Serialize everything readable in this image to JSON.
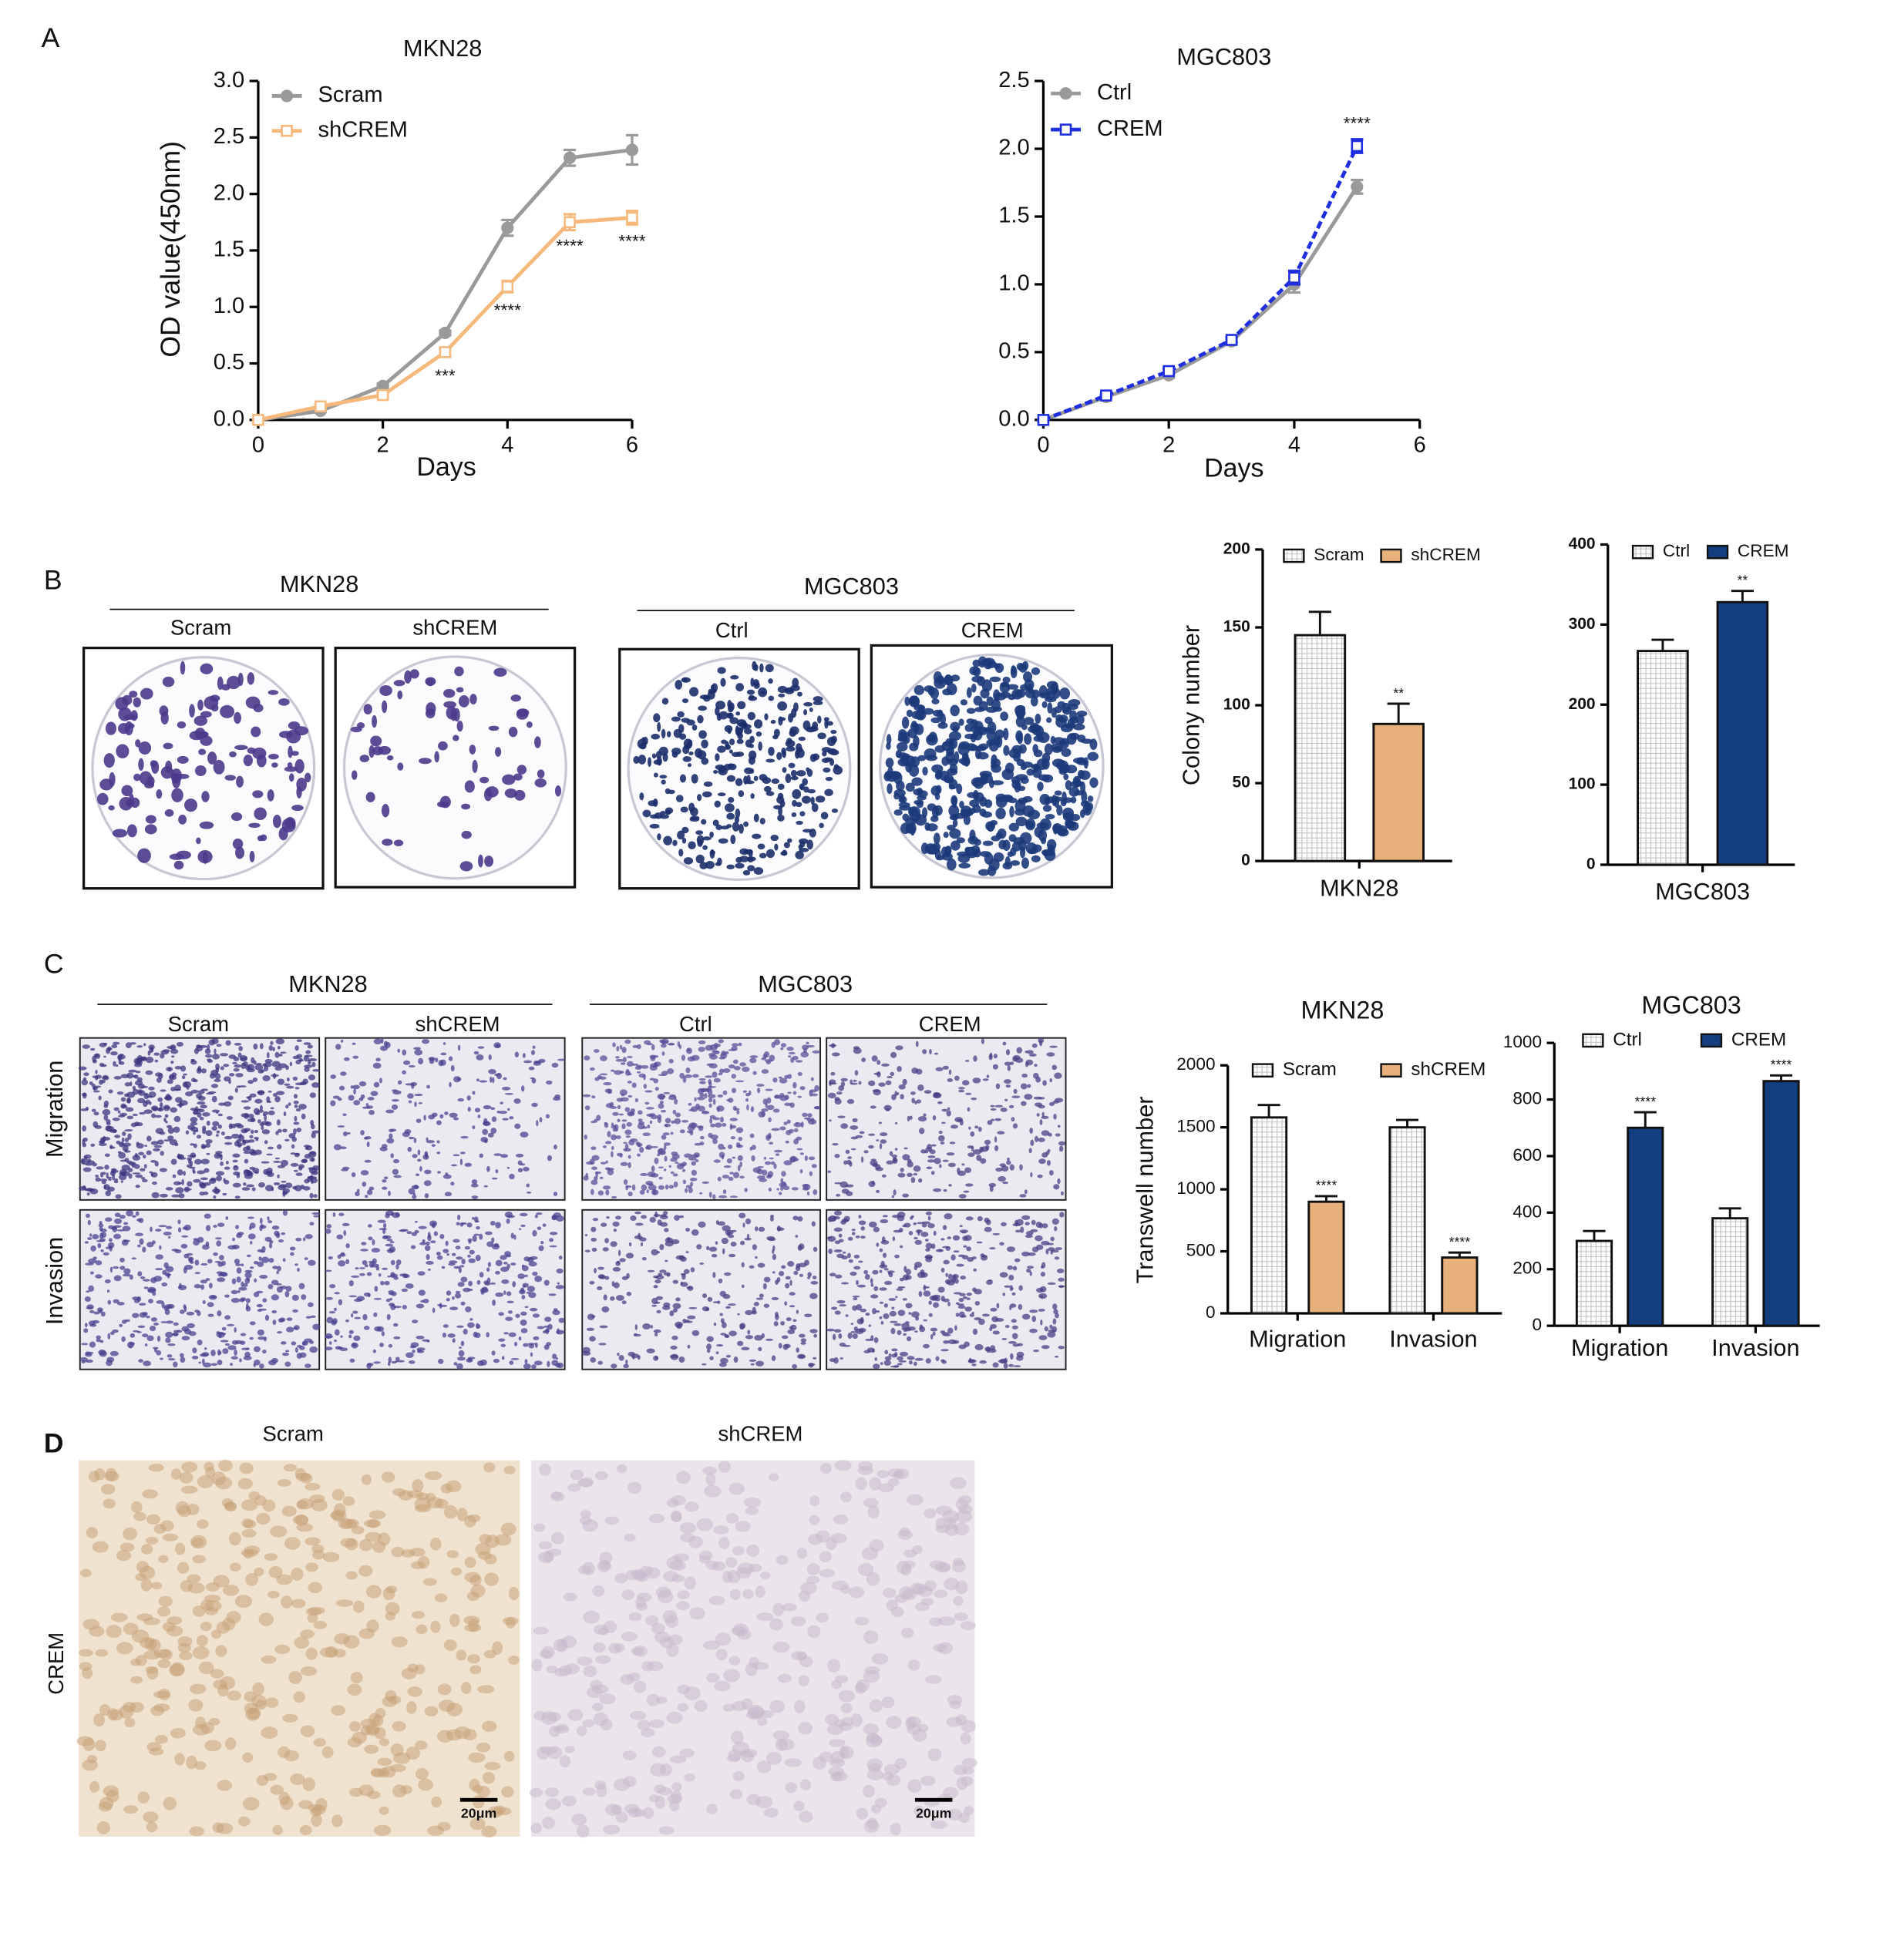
{
  "figure": {
    "panel_labels": [
      "A",
      "B",
      "C",
      "D"
    ]
  },
  "images": {
    "colony": {
      "groups": [
        {
          "title": "MKN28",
          "labels": [
            "Scram",
            "shCREM"
          ]
        },
        {
          "title": "MGC803",
          "labels": [
            "Ctrl",
            "CREM"
          ]
        }
      ]
    },
    "transwell": {
      "groups": [
        {
          "title": "MKN28",
          "labels": [
            "Scram",
            "shCREM"
          ]
        },
        {
          "title": "MGC803",
          "labels": [
            "Ctrl",
            "CREM"
          ]
        }
      ],
      "rows": [
        "Migration",
        "Invasion"
      ]
    },
    "ihc": {
      "labels": [
        "Scram",
        "shCREM"
      ],
      "row_label": "CREM",
      "scale_bar": "20μm"
    }
  },
  "chart_data": [
    {
      "type": "line",
      "title": "MKN28",
      "x_label": "Days",
      "y_label": "OD value(450nm)",
      "x": [
        0,
        1,
        2,
        3,
        4,
        5,
        6
      ],
      "xlim": [
        0,
        6
      ],
      "xticks": [
        0,
        2,
        4,
        6
      ],
      "ylim": [
        0,
        3
      ],
      "yticks": [
        {
          "value": 0,
          "label": "0.0"
        },
        0.5,
        {
          "value": 1,
          "label": "1.0"
        },
        1.5,
        {
          "value": 2,
          "label": "2.0"
        },
        2.5,
        {
          "value": 3,
          "label": "3.0"
        }
      ],
      "series": [
        {
          "name": "Scram",
          "color": "#9a9a9a",
          "marker": "circle",
          "values": [
            0,
            0.08,
            0.3,
            0.77,
            1.7,
            2.32,
            2.39
          ],
          "errors": [
            0,
            0.01,
            0.02,
            0.02,
            0.07,
            0.07,
            0.13
          ]
        },
        {
          "name": "shCREM",
          "color": "#f6b97c",
          "marker": "square",
          "values": [
            0,
            0.12,
            0.22,
            0.6,
            1.18,
            1.75,
            1.79
          ],
          "errors": [
            0,
            0.02,
            0.02,
            0.04,
            0.05,
            0.07,
            0.06
          ]
        }
      ],
      "annotations": [
        "***",
        "****",
        "****",
        "****"
      ]
    },
    {
      "type": "line",
      "title": "MGC803",
      "x_label": "Days",
      "x": [
        0,
        1,
        2,
        3,
        4,
        5
      ],
      "xlim": [
        0,
        6
      ],
      "xticks": [
        0,
        2,
        4,
        6
      ],
      "ylim": [
        0,
        2.5
      ],
      "yticks": [
        {
          "value": 0,
          "label": "0.0"
        },
        0.5,
        {
          "value": 1,
          "label": "1.0"
        },
        1.5,
        {
          "value": 2,
          "label": "2.0"
        },
        2.5
      ],
      "series": [
        {
          "name": "Ctrl",
          "color": "#9a9a9a",
          "marker": "circle",
          "values": [
            0,
            0.17,
            0.33,
            0.58,
            1.0,
            1.72
          ],
          "errors": [
            0,
            0.01,
            0.02,
            0.02,
            0.06,
            0.05
          ]
        },
        {
          "name": "CREM",
          "color": "#1f2fe0",
          "marker": "square",
          "dash": true,
          "values": [
            0,
            0.18,
            0.36,
            0.59,
            1.05,
            2.02
          ],
          "errors": [
            0,
            0.01,
            0.02,
            0.02,
            0.05,
            0.05
          ]
        }
      ],
      "annotations": [
        "****"
      ]
    },
    {
      "type": "bar",
      "y_label": "Colony number",
      "categories": [
        "MKN28"
      ],
      "ylim": [
        0,
        200
      ],
      "yticks": [
        0,
        50,
        100,
        150,
        200
      ],
      "series": [
        {
          "name": "Scram",
          "color": "#ffffff",
          "pattern": "grid",
          "values": [
            145
          ],
          "errors": [
            15
          ]
        },
        {
          "name": "shCREM",
          "color": "#e8b07a",
          "values": [
            88
          ],
          "errors": [
            13
          ]
        }
      ],
      "annotations": [
        "**"
      ]
    },
    {
      "type": "bar",
      "categories": [
        "MGC803"
      ],
      "ylim": [
        0,
        400
      ],
      "yticks": [
        0,
        100,
        200,
        300,
        400
      ],
      "series": [
        {
          "name": "Ctrl",
          "color": "#ffffff",
          "pattern": "grid",
          "values": [
            267
          ],
          "errors": [
            14
          ]
        },
        {
          "name": "CREM",
          "color": "#133f80",
          "values": [
            328
          ],
          "errors": [
            14
          ]
        }
      ],
      "annotations": [
        "**"
      ]
    },
    {
      "type": "bar",
      "title": "MKN28",
      "y_label": "Transwell number",
      "categories": [
        "Migration",
        "Invasion"
      ],
      "ylim": [
        0,
        2000
      ],
      "yticks": [
        0,
        500,
        1000,
        1500,
        2000
      ],
      "series": [
        {
          "name": "Scram",
          "color": "#ffffff",
          "pattern": "grid",
          "values": [
            1580,
            1500
          ],
          "errors": [
            100,
            60
          ]
        },
        {
          "name": "shCREM",
          "color": "#e8b07a",
          "values": [
            900,
            450
          ],
          "errors": [
            45,
            40
          ]
        }
      ],
      "annotations": [
        "****",
        "****"
      ]
    },
    {
      "type": "bar",
      "title": "MGC803",
      "categories": [
        "Migration",
        "Invasion"
      ],
      "ylim": [
        0,
        1000
      ],
      "yticks": [
        0,
        200,
        400,
        600,
        800,
        1000
      ],
      "series": [
        {
          "name": "Ctrl",
          "color": "#ffffff",
          "pattern": "grid",
          "values": [
            300,
            380
          ],
          "errors": [
            35,
            35
          ]
        },
        {
          "name": "CREM",
          "color": "#133f80",
          "values": [
            700,
            865
          ],
          "errors": [
            55,
            20
          ]
        }
      ],
      "annotations": [
        "****",
        "****"
      ]
    }
  ]
}
